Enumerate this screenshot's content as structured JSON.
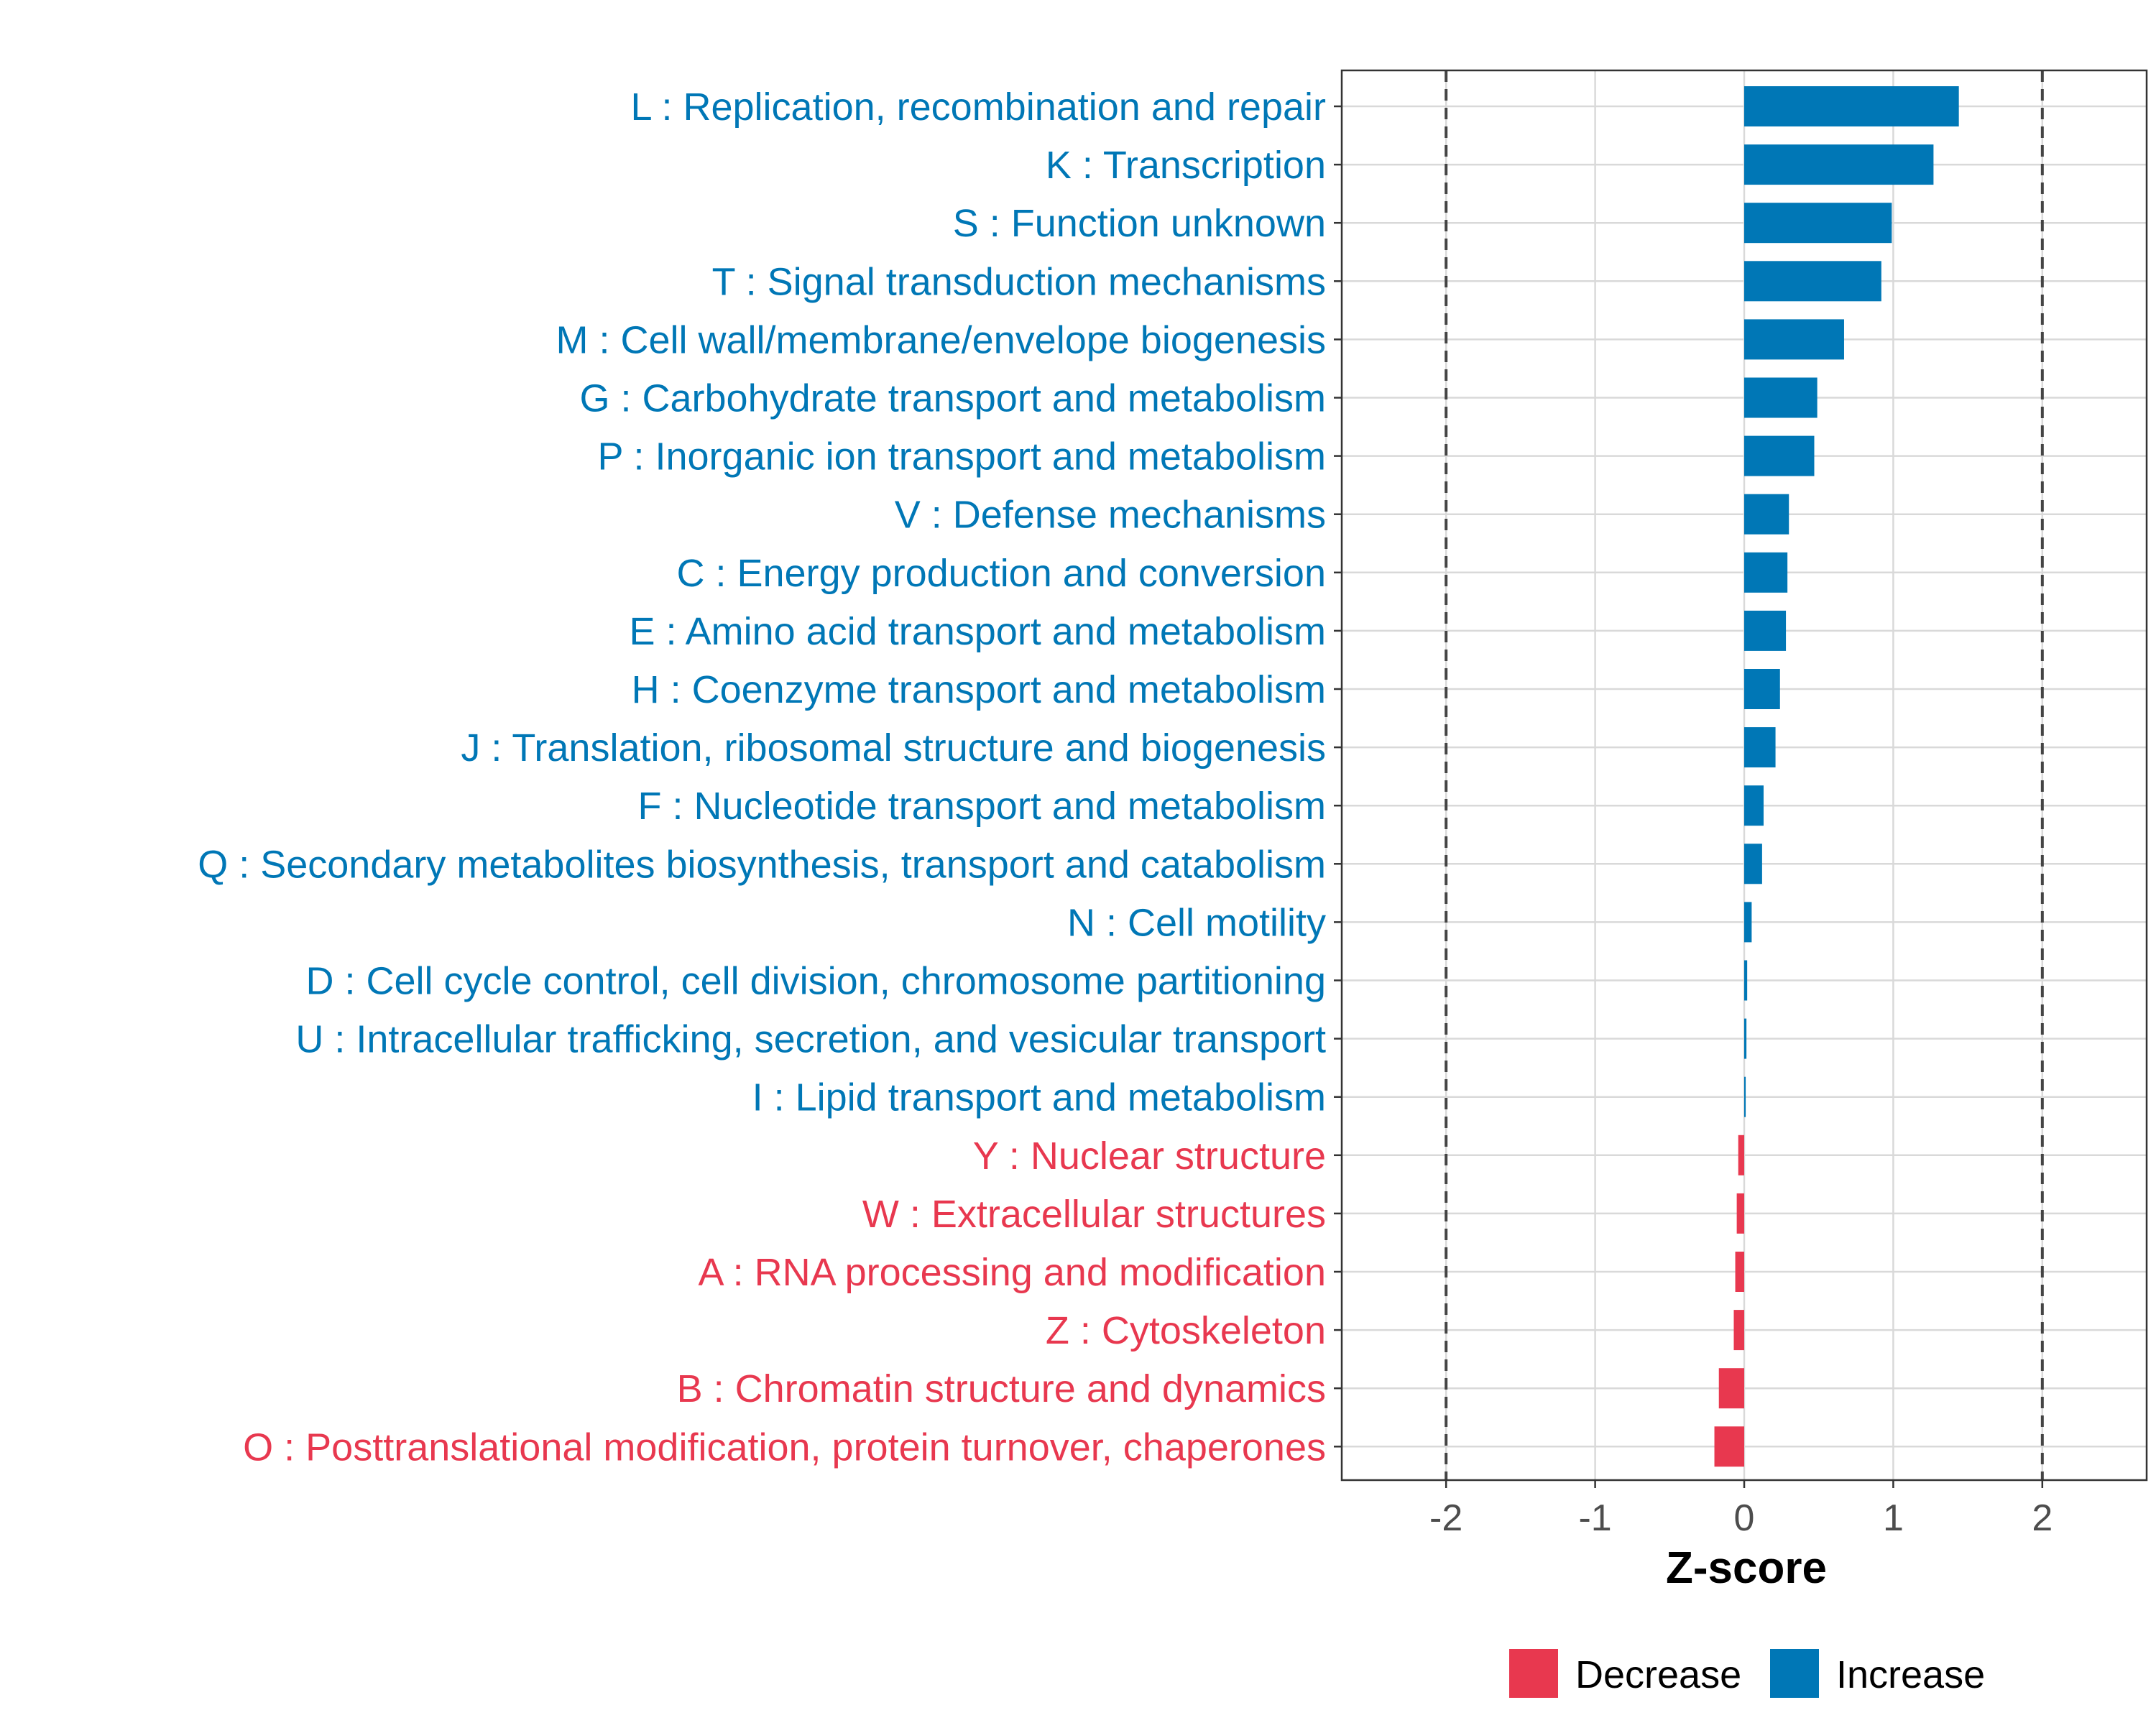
{
  "chart_data": {
    "type": "bar",
    "orientation": "horizontal",
    "xlabel": "Z-score",
    "ylabel": "",
    "xlim": [
      -2.7,
      2.7
    ],
    "x_ticks": [
      -2,
      -1,
      0,
      1,
      2
    ],
    "x_tick_labels": [
      "-2",
      "-1",
      "0",
      "1",
      "2"
    ],
    "reference_lines": [
      -2,
      2
    ],
    "grid": true,
    "legend_position": "bottom",
    "colors": {
      "Decrease": "#E8384F",
      "Increase": "#0077B6"
    },
    "legend": [
      {
        "label": "Decrease",
        "color": "#E8384F"
      },
      {
        "label": "Increase",
        "color": "#0077B6"
      }
    ],
    "categories": [
      {
        "label": "L : Replication, recombination and repair",
        "value": 1.44,
        "group": "Increase"
      },
      {
        "label": "K : Transcription",
        "value": 1.27,
        "group": "Increase"
      },
      {
        "label": "S : Function unknown",
        "value": 0.99,
        "group": "Increase"
      },
      {
        "label": "T : Signal transduction mechanisms",
        "value": 0.92,
        "group": "Increase"
      },
      {
        "label": "M : Cell wall/membrane/envelope biogenesis",
        "value": 0.67,
        "group": "Increase"
      },
      {
        "label": "G : Carbohydrate transport and metabolism",
        "value": 0.49,
        "group": "Increase"
      },
      {
        "label": "P : Inorganic ion transport and metabolism",
        "value": 0.47,
        "group": "Increase"
      },
      {
        "label": "V : Defense mechanisms",
        "value": 0.3,
        "group": "Increase"
      },
      {
        "label": "C : Energy production and conversion",
        "value": 0.29,
        "group": "Increase"
      },
      {
        "label": "E : Amino acid transport and metabolism",
        "value": 0.28,
        "group": "Increase"
      },
      {
        "label": "H : Coenzyme transport and metabolism",
        "value": 0.24,
        "group": "Increase"
      },
      {
        "label": "J : Translation, ribosomal structure and biogenesis",
        "value": 0.21,
        "group": "Increase"
      },
      {
        "label": "F : Nucleotide transport and metabolism",
        "value": 0.13,
        "group": "Increase"
      },
      {
        "label": "Q : Secondary metabolites biosynthesis, transport and catabolism",
        "value": 0.12,
        "group": "Increase"
      },
      {
        "label": "N : Cell motility",
        "value": 0.05,
        "group": "Increase"
      },
      {
        "label": "D : Cell cycle control, cell division, chromosome partitioning",
        "value": 0.02,
        "group": "Increase"
      },
      {
        "label": "U : Intracellular trafficking, secretion, and vesicular transport",
        "value": 0.015,
        "group": "Increase"
      },
      {
        "label": "I : Lipid transport and metabolism",
        "value": 0.01,
        "group": "Increase"
      },
      {
        "label": "Y : Nuclear structure",
        "value": -0.04,
        "group": "Decrease"
      },
      {
        "label": "W : Extracellular structures",
        "value": -0.05,
        "group": "Decrease"
      },
      {
        "label": "A : RNA processing and modification",
        "value": -0.06,
        "group": "Decrease"
      },
      {
        "label": "Z : Cytoskeleton",
        "value": -0.07,
        "group": "Decrease"
      },
      {
        "label": "B : Chromatin structure and dynamics",
        "value": -0.17,
        "group": "Decrease"
      },
      {
        "label": "O : Posttranslational modification, protein turnover, chaperones",
        "value": -0.2,
        "group": "Decrease"
      }
    ]
  }
}
